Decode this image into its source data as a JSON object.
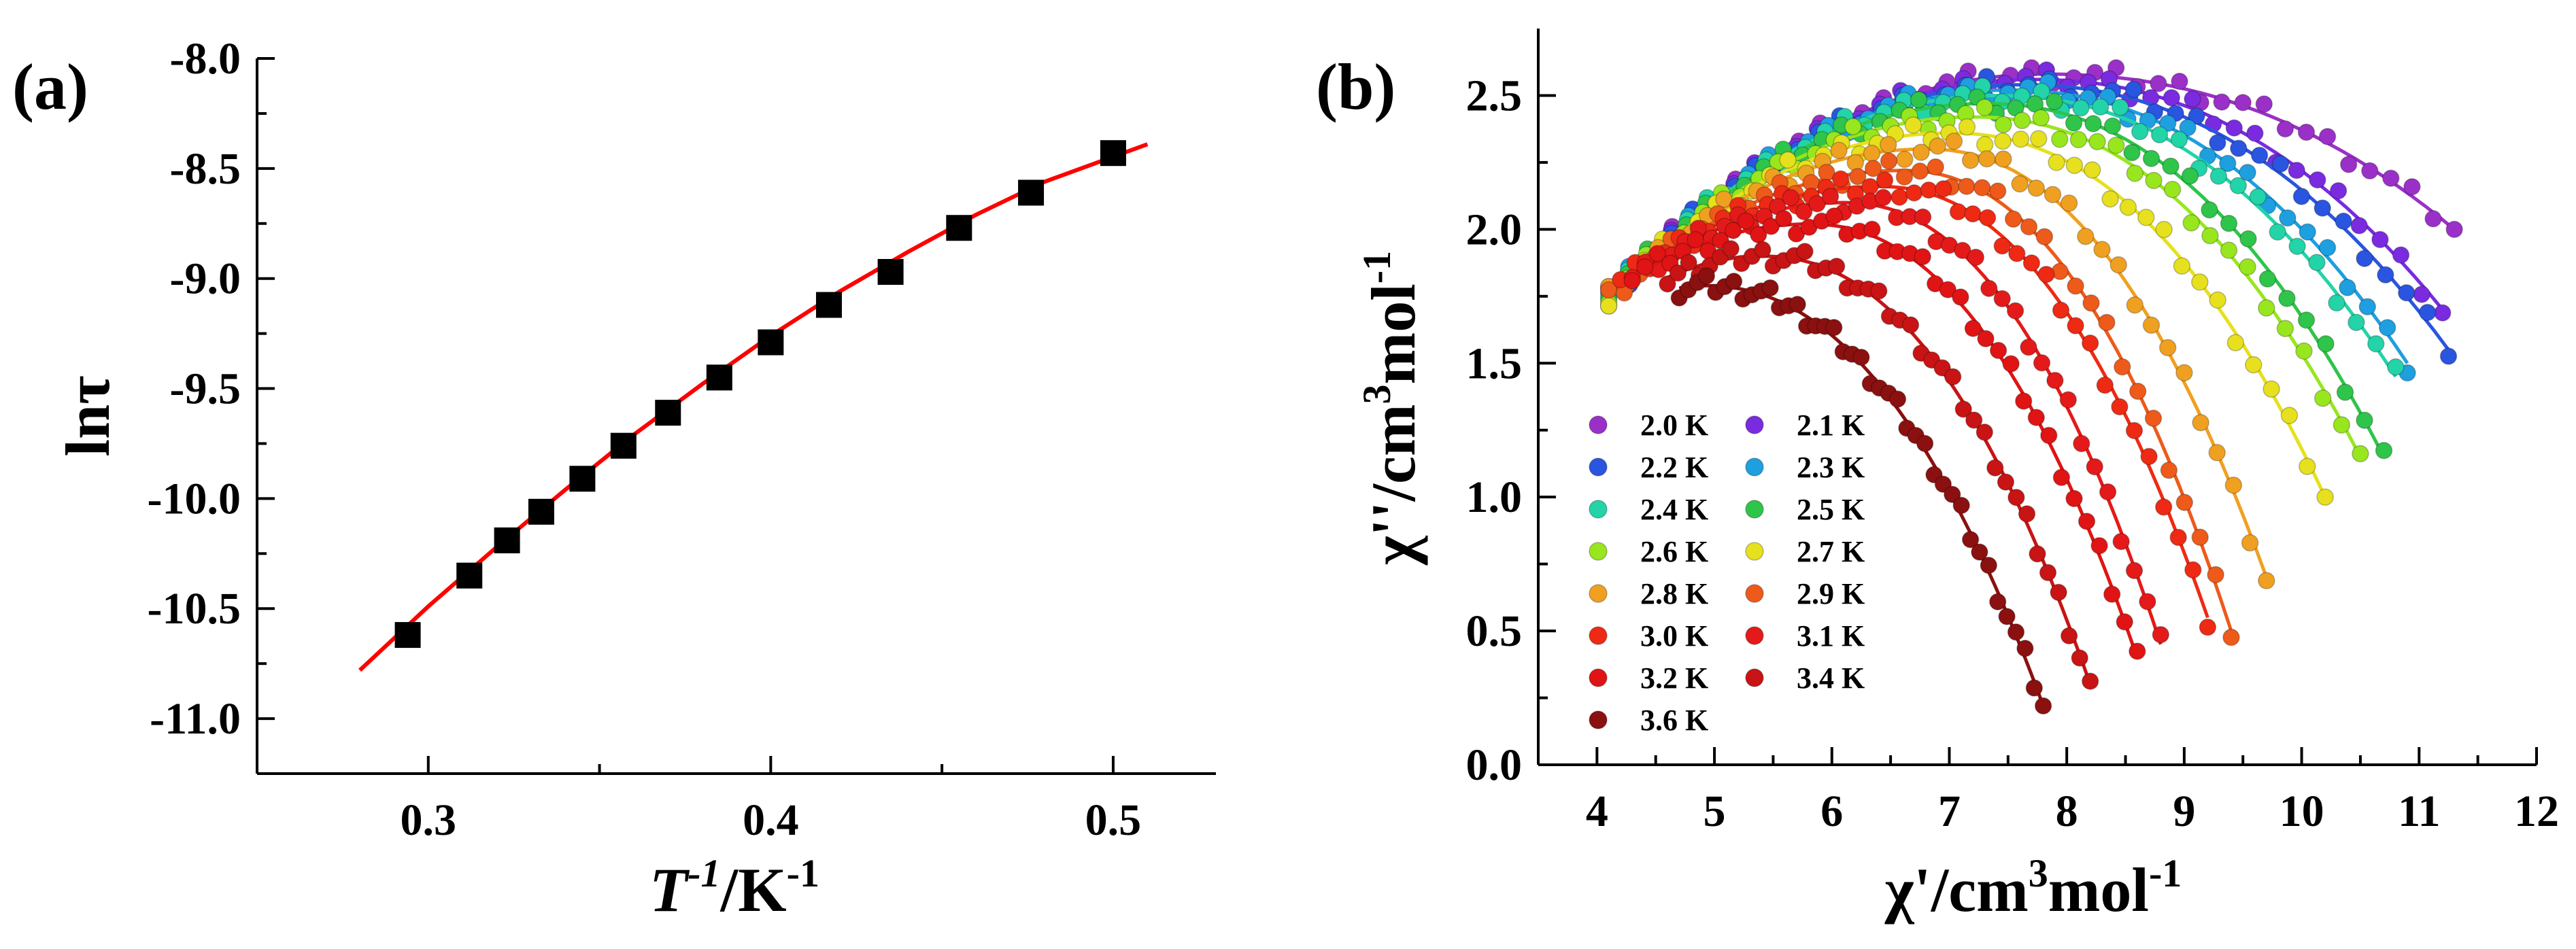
{
  "chart_data": [
    {
      "panel": "(a)",
      "type": "scatter",
      "xlabel": {
        "main": "T",
        "sup": "-1",
        "rest": "/K",
        "sup2": "-1"
      },
      "ylabel": "lnτ",
      "xlim": [
        0.25,
        0.53
      ],
      "ylim": [
        -11.25,
        -8.0
      ],
      "xticks": [
        0.3,
        0.4,
        0.5
      ],
      "xtick_labels": [
        "0.3",
        "0.4",
        "0.5"
      ],
      "yticks": [
        -11.0,
        -10.5,
        -10.0,
        -9.5,
        -9.0,
        -8.5,
        -8.0
      ],
      "ytick_labels": [
        "-11.0",
        "-10.5",
        "-10.0",
        "-9.5",
        "-9.0",
        "-8.5",
        "-8.0"
      ],
      "points": {
        "x": [
          0.294,
          0.312,
          0.323,
          0.333,
          0.345,
          0.357,
          0.37,
          0.385,
          0.4,
          0.417,
          0.435,
          0.455,
          0.476,
          0.5
        ],
        "y": [
          -10.62,
          -10.35,
          -10.19,
          -10.06,
          -9.91,
          -9.76,
          -9.61,
          -9.45,
          -9.29,
          -9.12,
          -8.97,
          -8.77,
          -8.61,
          -8.43
        ],
        "marker": "square",
        "color": "#000000"
      },
      "fit": {
        "x": [
          0.28,
          0.3,
          0.32,
          0.34,
          0.36,
          0.38,
          0.4,
          0.42,
          0.44,
          0.46,
          0.48,
          0.51
        ],
        "y": [
          -10.78,
          -10.49,
          -10.22,
          -9.96,
          -9.71,
          -9.48,
          -9.26,
          -9.06,
          -8.88,
          -8.71,
          -8.56,
          -8.39
        ],
        "color": "#ff0000"
      }
    },
    {
      "panel": "(b)",
      "type": "scatter",
      "xlabel": {
        "main": "χ'/cm",
        "sup": "3",
        "rest": "mol",
        "sup2": "-1"
      },
      "ylabel": {
        "main": "χ''/cm",
        "sup": "3",
        "rest": "mol",
        "sup2": "-1"
      },
      "xlim": [
        3.5,
        12
      ],
      "ylim": [
        0,
        2.75
      ],
      "xticks": [
        4,
        5,
        6,
        7,
        8,
        9,
        10,
        11,
        12
      ],
      "xtick_labels": [
        "4",
        "5",
        "6",
        "7",
        "8",
        "9",
        "10",
        "11",
        "12"
      ],
      "yticks": [
        0.0,
        0.5,
        1.0,
        1.5,
        2.0,
        2.5
      ],
      "ytick_labels": [
        "0.0",
        "0.5",
        "1.0",
        "1.5",
        "2.0",
        "2.5"
      ],
      "series": [
        {
          "name": "2.0 K",
          "color": "#9b30c8",
          "x0": 4.1,
          "xe": 11.3,
          "xp": 7.8,
          "y0": 1.75,
          "yp": 2.58,
          "ye": 2.0
        },
        {
          "name": "2.1 K",
          "color": "#7a2be0",
          "x0": 4.1,
          "xe": 11.2,
          "xp": 7.7,
          "y0": 1.75,
          "yp": 2.56,
          "ye": 1.7
        },
        {
          "name": "2.2 K",
          "color": "#2a55e0",
          "x0": 4.1,
          "xe": 11.25,
          "xp": 7.6,
          "y0": 1.75,
          "yp": 2.54,
          "ye": 1.55
        },
        {
          "name": "2.3 K",
          "color": "#1e9fe0",
          "x0": 4.1,
          "xe": 10.9,
          "xp": 7.5,
          "y0": 1.75,
          "yp": 2.52,
          "ye": 1.5
        },
        {
          "name": "2.4 K",
          "color": "#22d4a8",
          "x0": 4.1,
          "xe": 10.8,
          "xp": 7.4,
          "y0": 1.75,
          "yp": 2.5,
          "ye": 1.45
        },
        {
          "name": "2.5 K",
          "color": "#2ec54a",
          "x0": 4.1,
          "xe": 10.7,
          "xp": 7.3,
          "y0": 1.75,
          "yp": 2.47,
          "ye": 1.15
        },
        {
          "name": "2.6 K",
          "color": "#98e61e",
          "x0": 4.1,
          "xe": 10.5,
          "xp": 7.2,
          "y0": 1.75,
          "yp": 2.42,
          "ye": 1.15
        },
        {
          "name": "2.7 K",
          "color": "#e6e01e",
          "x0": 4.1,
          "xe": 10.2,
          "xp": 7.0,
          "y0": 1.75,
          "yp": 2.36,
          "ye": 1.0
        },
        {
          "name": "2.8 K",
          "color": "#f0a020",
          "x0": 4.1,
          "xe": 9.7,
          "xp": 6.8,
          "y0": 1.75,
          "yp": 2.3,
          "ye": 0.7
        },
        {
          "name": "2.9 K",
          "color": "#ee5a1a",
          "x0": 4.1,
          "xe": 9.4,
          "xp": 6.6,
          "y0": 1.75,
          "yp": 2.22,
          "ye": 0.5
        },
        {
          "name": "3.0 K",
          "color": "#ee2a14",
          "x0": 4.2,
          "xe": 9.2,
          "xp": 6.4,
          "y0": 1.8,
          "yp": 2.16,
          "ye": 0.55
        },
        {
          "name": "3.1 K",
          "color": "#e41a1a",
          "x0": 4.3,
          "xe": 8.8,
          "xp": 6.1,
          "y0": 1.82,
          "yp": 2.1,
          "ye": 0.45
        },
        {
          "name": "3.2 K",
          "color": "#e01414",
          "x0": 4.3,
          "xe": 8.6,
          "xp": 5.8,
          "y0": 1.82,
          "yp": 2.02,
          "ye": 0.4
        },
        {
          "name": "3.4 K",
          "color": "#c81414",
          "x0": 4.6,
          "xe": 8.2,
          "xp": 5.4,
          "y0": 1.82,
          "yp": 1.9,
          "ye": 0.3
        },
        {
          "name": "3.6 K",
          "color": "#8b1010",
          "x0": 4.7,
          "xe": 7.8,
          "xp": 4.9,
          "y0": 1.78,
          "yp": 1.79,
          "ye": 0.22
        }
      ]
    }
  ]
}
